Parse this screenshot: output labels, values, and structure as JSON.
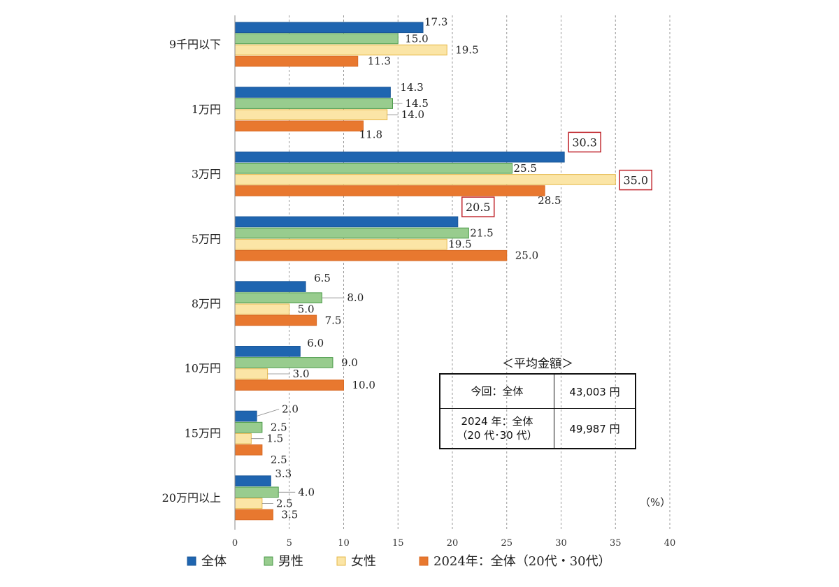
{
  "chart_data": {
    "type": "bar",
    "orientation": "horizontal",
    "categories": [
      "9千円以下",
      "1万円",
      "3万円",
      "5万円",
      "8万円",
      "10万円",
      "15万円",
      "20万円以上"
    ],
    "series": [
      {
        "name": "全体",
        "color": "#1f65b0",
        "values": [
          17.3,
          14.3,
          30.3,
          20.5,
          6.5,
          6.0,
          2.0,
          3.3
        ]
      },
      {
        "name": "男性",
        "color": "#98cc8e",
        "values": [
          15.0,
          14.5,
          25.5,
          21.5,
          8.0,
          9.0,
          2.5,
          4.0
        ]
      },
      {
        "name": "女性",
        "color": "#fbe5a6",
        "values": [
          19.5,
          14.0,
          35.0,
          19.5,
          5.0,
          3.0,
          1.5,
          2.5
        ]
      },
      {
        "name": "2024年：全体（20代・30代）",
        "color": "#e8782f",
        "values": [
          11.3,
          11.8,
          28.5,
          25.0,
          7.5,
          10.0,
          2.5,
          3.5
        ]
      }
    ],
    "series_strokes": [
      "#1a5799",
      "#4a9a48",
      "#e6b84a",
      "#d96a24"
    ],
    "value_labels": {
      "0": [
        "17.3",
        "14.3",
        "30.3",
        "20.5",
        "6.5",
        "6.0",
        "2.0",
        "3.3"
      ],
      "1": [
        "15.0",
        "14.5",
        "25.5",
        "21.5",
        "8.0",
        "9.0",
        "2.5",
        "4.0"
      ],
      "2": [
        "19.5",
        "14.0",
        "35.0",
        "19.5",
        "5.0",
        "3.0",
        "1.5",
        "2.5"
      ],
      "3": [
        "11.3",
        "11.8",
        "28.5",
        "25.0",
        "7.5",
        "10.0",
        "2.5",
        "3.5"
      ]
    },
    "highlighted": [
      {
        "series": 0,
        "category": 2
      },
      {
        "series": 2,
        "category": 2
      },
      {
        "series": 0,
        "category": 3
      }
    ],
    "highlight_color": "#c0262d",
    "xlim": [
      0,
      40
    ],
    "xticks": [
      0,
      5,
      10,
      15,
      20,
      25,
      30,
      35,
      40
    ],
    "xunit": "（%）",
    "grid": "vertical dashed",
    "legend": "bottom"
  },
  "summary_box": {
    "title": "＜平均金額＞",
    "rows": [
      {
        "label": "今回：全体",
        "sub": "",
        "value": "43,003 円"
      },
      {
        "label": "2024 年：全体",
        "sub": "（20 代･30 代）",
        "value": "49,987 円"
      }
    ]
  }
}
